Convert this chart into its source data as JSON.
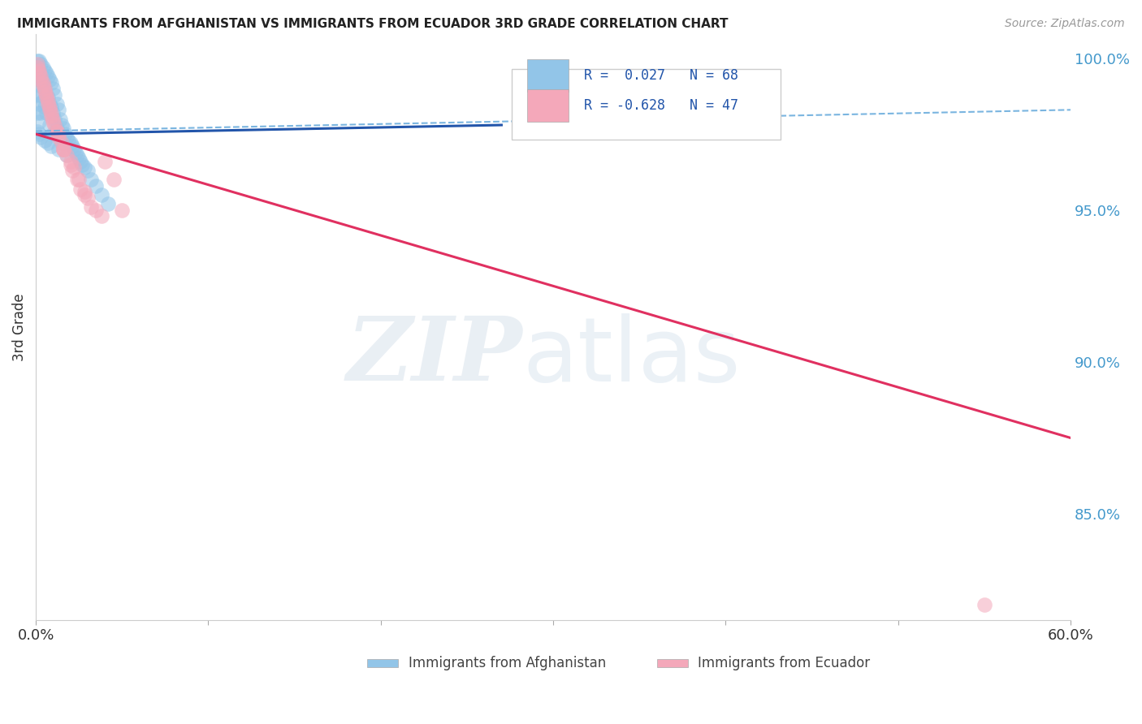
{
  "title": "IMMIGRANTS FROM AFGHANISTAN VS IMMIGRANTS FROM ECUADOR 3RD GRADE CORRELATION CHART",
  "source_text": "Source: ZipAtlas.com",
  "ylabel": "3rd Grade",
  "xlim": [
    0.0,
    0.6
  ],
  "ylim": [
    0.815,
    1.008
  ],
  "yticks": [
    0.85,
    0.9,
    0.95,
    1.0
  ],
  "ytick_labels": [
    "85.0%",
    "90.0%",
    "95.0%",
    "100.0%"
  ],
  "xticks": [
    0.0,
    0.1,
    0.2,
    0.3,
    0.4,
    0.5,
    0.6
  ],
  "xtick_labels": [
    "0.0%",
    "",
    "",
    "",
    "",
    "",
    "60.0%"
  ],
  "afghanistan_R": 0.027,
  "afghanistan_N": 68,
  "ecuador_R": -0.628,
  "ecuador_N": 47,
  "afghanistan_color": "#92c5e8",
  "ecuador_color": "#f4a8ba",
  "afghanistan_line_color": "#2255aa",
  "ecuador_line_color": "#e03060",
  "dashed_line_color": "#7ab5e0",
  "background_color": "#ffffff",
  "grid_color": "#cccccc",
  "afghanistan_trend_x0": 0.0,
  "afghanistan_trend_y0": 0.975,
  "afghanistan_trend_x1": 0.27,
  "afghanistan_trend_y1": 0.978,
  "dashed_trend_x0": 0.0,
  "dashed_trend_y0": 0.976,
  "dashed_trend_x1": 0.6,
  "dashed_trend_y1": 0.983,
  "ecuador_trend_x0": 0.0,
  "ecuador_trend_y0": 0.975,
  "ecuador_trend_x1": 0.6,
  "ecuador_trend_y1": 0.875,
  "afghanistan_scatter_x": [
    0.001,
    0.001,
    0.001,
    0.001,
    0.001,
    0.002,
    0.002,
    0.002,
    0.002,
    0.002,
    0.003,
    0.003,
    0.003,
    0.003,
    0.004,
    0.004,
    0.004,
    0.005,
    0.005,
    0.005,
    0.006,
    0.006,
    0.006,
    0.007,
    0.007,
    0.008,
    0.008,
    0.008,
    0.009,
    0.009,
    0.01,
    0.01,
    0.01,
    0.011,
    0.011,
    0.012,
    0.012,
    0.013,
    0.013,
    0.014,
    0.015,
    0.015,
    0.016,
    0.017,
    0.018,
    0.019,
    0.02,
    0.021,
    0.022,
    0.023,
    0.024,
    0.025,
    0.026,
    0.027,
    0.028,
    0.03,
    0.032,
    0.035,
    0.038,
    0.042,
    0.001,
    0.002,
    0.003,
    0.005,
    0.007,
    0.009,
    0.013,
    0.018
  ],
  "afghanistan_scatter_y": [
    0.999,
    0.997,
    0.993,
    0.988,
    0.982,
    0.999,
    0.996,
    0.991,
    0.985,
    0.979,
    0.998,
    0.994,
    0.988,
    0.982,
    0.997,
    0.992,
    0.986,
    0.996,
    0.99,
    0.984,
    0.995,
    0.988,
    0.982,
    0.994,
    0.987,
    0.993,
    0.985,
    0.978,
    0.992,
    0.984,
    0.99,
    0.982,
    0.975,
    0.988,
    0.98,
    0.985,
    0.977,
    0.983,
    0.975,
    0.98,
    0.978,
    0.972,
    0.977,
    0.975,
    0.974,
    0.973,
    0.972,
    0.971,
    0.97,
    0.969,
    0.968,
    0.967,
    0.966,
    0.965,
    0.964,
    0.963,
    0.96,
    0.958,
    0.955,
    0.952,
    0.976,
    0.975,
    0.974,
    0.973,
    0.972,
    0.971,
    0.97,
    0.968
  ],
  "ecuador_scatter_x": [
    0.001,
    0.002,
    0.003,
    0.004,
    0.005,
    0.006,
    0.007,
    0.008,
    0.009,
    0.01,
    0.011,
    0.012,
    0.013,
    0.015,
    0.016,
    0.018,
    0.02,
    0.022,
    0.025,
    0.028,
    0.03,
    0.035,
    0.038,
    0.04,
    0.045,
    0.05,
    0.002,
    0.004,
    0.006,
    0.008,
    0.01,
    0.013,
    0.016,
    0.02,
    0.024,
    0.028,
    0.001,
    0.003,
    0.005,
    0.007,
    0.009,
    0.012,
    0.016,
    0.021,
    0.026,
    0.032,
    0.55
  ],
  "ecuador_scatter_y": [
    0.998,
    0.996,
    0.994,
    0.992,
    0.99,
    0.988,
    0.986,
    0.984,
    0.982,
    0.98,
    0.978,
    0.976,
    0.974,
    0.972,
    0.97,
    0.968,
    0.966,
    0.964,
    0.96,
    0.956,
    0.954,
    0.95,
    0.948,
    0.966,
    0.96,
    0.95,
    0.995,
    0.991,
    0.987,
    0.983,
    0.979,
    0.975,
    0.97,
    0.965,
    0.96,
    0.955,
    0.997,
    0.993,
    0.989,
    0.985,
    0.981,
    0.976,
    0.97,
    0.963,
    0.957,
    0.951,
    0.82
  ]
}
